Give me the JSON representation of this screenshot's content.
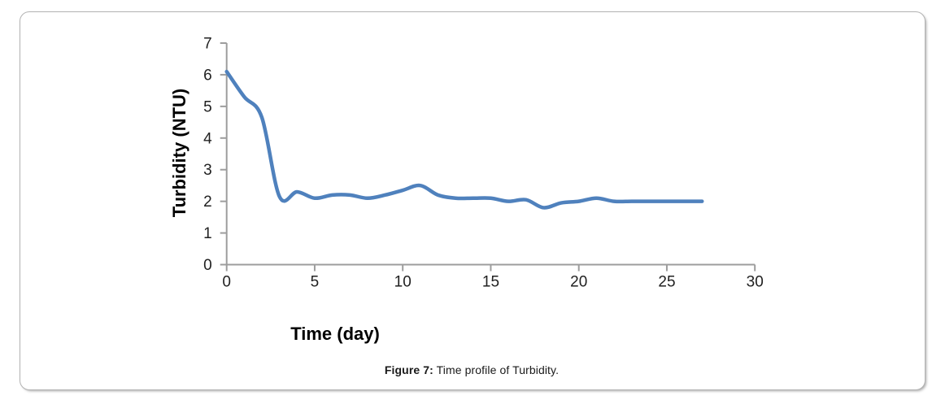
{
  "chart_data": {
    "type": "line",
    "title": "",
    "xlabel": "Time (day)",
    "ylabel": "Turbidity (NTU)",
    "x": [
      0,
      1,
      2,
      3,
      4,
      5,
      6,
      7,
      8,
      9,
      10,
      11,
      12,
      13,
      14,
      15,
      16,
      17,
      18,
      19,
      20,
      21,
      22,
      23,
      24,
      25,
      26,
      27
    ],
    "series": [
      {
        "name": "Turbidity",
        "values": [
          6.1,
          5.3,
          4.65,
          2.15,
          2.3,
          2.1,
          2.2,
          2.2,
          2.1,
          2.2,
          2.35,
          2.5,
          2.2,
          2.1,
          2.1,
          2.1,
          2.0,
          2.05,
          1.8,
          1.95,
          2.0,
          2.1,
          2.0,
          2.0,
          2.0,
          2.0,
          2.0,
          2.0
        ]
      }
    ],
    "xlim": [
      0,
      30
    ],
    "ylim": [
      0,
      7
    ],
    "xticks": [
      0,
      5,
      10,
      15,
      20,
      25,
      30
    ],
    "yticks": [
      0,
      1,
      2,
      3,
      4,
      5,
      6,
      7
    ],
    "grid": false,
    "legend": "none",
    "smoothed": true,
    "line_color": "#4f81bd",
    "axis_color": "#9d9d9d"
  },
  "caption": {
    "prefix": "Figure 7:",
    "text": " Time profile of Turbidity."
  }
}
